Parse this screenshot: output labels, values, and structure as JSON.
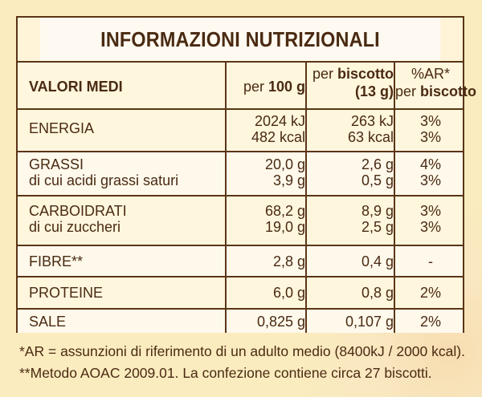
{
  "title": "INFORMAZIONI NUTRIZIONALI",
  "header": {
    "label": "VALORI MEDI",
    "per100_prefix": "per",
    "per100_value": "100 g",
    "per_biscuit_line1_prefix": "per",
    "per_biscuit_line1_bold": "biscotto",
    "per_biscuit_line2": "(13 g)",
    "ar_line1": "%AR*",
    "ar_line2_prefix": "per",
    "ar_line2_bold": "biscotto"
  },
  "rows": [
    {
      "labels": [
        "ENERGIA"
      ],
      "per100": [
        "2024 kJ",
        "482 kcal"
      ],
      "per_biscuit": [
        "263 kJ",
        "63 kcal"
      ],
      "ar": [
        "3%",
        "3%"
      ]
    },
    {
      "labels": [
        "GRASSI",
        "di cui acidi grassi saturi"
      ],
      "per100": [
        "20,0 g",
        "3,9 g"
      ],
      "per_biscuit": [
        "2,6 g",
        "0,5 g"
      ],
      "ar": [
        "4%",
        "3%"
      ]
    },
    {
      "labels": [
        "CARBOIDRATI",
        "di cui zuccheri"
      ],
      "per100": [
        "68,2 g",
        "19,0 g"
      ],
      "per_biscuit": [
        "8,9 g",
        "2,5 g"
      ],
      "ar": [
        "3%",
        "3%"
      ]
    },
    {
      "labels": [
        "FIBRE**"
      ],
      "per100": [
        "2,8 g"
      ],
      "per_biscuit": [
        "0,4 g"
      ],
      "ar": [
        "-"
      ]
    },
    {
      "labels": [
        "PROTEINE"
      ],
      "per100": [
        "6,0 g"
      ],
      "per_biscuit": [
        "0,8 g"
      ],
      "ar": [
        "2%"
      ]
    },
    {
      "labels": [
        "SALE"
      ],
      "per100": [
        "0,825 g"
      ],
      "per_biscuit": [
        "0,107 g"
      ],
      "ar": [
        "2%"
      ]
    }
  ],
  "footnotes": [
    "*AR = assunzioni di riferimento di un adulto medio (8400kJ / 2000 kcal).",
    "**Metodo AOAC 2009.01. La confezione contiene circa 27 biscotti."
  ],
  "colors": {
    "text": "#4a2a12",
    "border": "#5a3516",
    "background": "#fbecbf"
  }
}
